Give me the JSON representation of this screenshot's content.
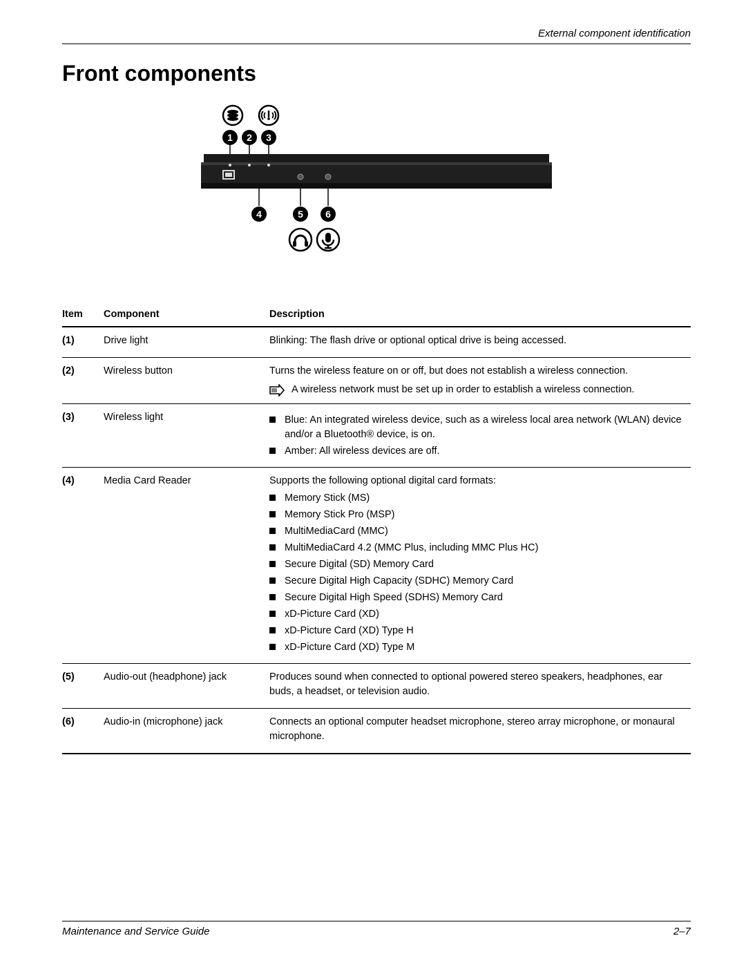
{
  "header": {
    "section": "External component identification"
  },
  "title": "Front components",
  "table": {
    "columns": {
      "item": "Item",
      "component": "Component",
      "description": "Description"
    },
    "rows": [
      {
        "n": "(1)",
        "component": "Drive light",
        "description_text": "Blinking: The flash drive or optional optical drive is being accessed."
      },
      {
        "n": "(2)",
        "component": "Wireless button",
        "description_text": "Turns the wireless feature on or off, but does not establish a wireless connection.",
        "note": "A wireless network must be set up in order to establish a wireless connection."
      },
      {
        "n": "(3)",
        "component": "Wireless light",
        "bullets": [
          "Blue: An integrated wireless device, such as a wireless local area network (WLAN) device and/or a Bluetooth® device, is on.",
          "Amber: All wireless devices are off."
        ]
      },
      {
        "n": "(4)",
        "component": "Media Card Reader",
        "description_text": "Supports the following optional digital card formats:",
        "bullets": [
          "Memory Stick (MS)",
          "Memory Stick Pro (MSP)",
          "MultiMediaCard (MMC)",
          "MultiMediaCard 4.2 (MMC Plus, including MMC Plus HC)",
          "Secure Digital (SD) Memory Card",
          "Secure Digital High Capacity (SDHC) Memory Card",
          "Secure Digital High Speed (SDHS) Memory Card",
          "xD-Picture Card (XD)",
          "xD-Picture Card (XD) Type H",
          "xD-Picture Card (XD) Type M"
        ]
      },
      {
        "n": "(5)",
        "component": "Audio-out (headphone) jack",
        "description_text": "Produces sound when connected to optional powered stereo speakers, headphones, ear buds, a headset, or television audio."
      },
      {
        "n": "(6)",
        "component": "Audio-in (microphone) jack",
        "description_text": "Connects an optional computer headset microphone, stereo array microphone, or monaural microphone."
      }
    ]
  },
  "callouts": {
    "top": [
      "1",
      "2",
      "3"
    ],
    "bottom": [
      "4",
      "5",
      "6"
    ]
  },
  "footer": {
    "left": "Maintenance and Service Guide",
    "right": "2–7"
  },
  "colors": {
    "text": "#000000",
    "rule": "#000000",
    "laptop_dark": "#1a1a1a",
    "laptop_mid": "#2e2e2e",
    "background": "#ffffff"
  }
}
